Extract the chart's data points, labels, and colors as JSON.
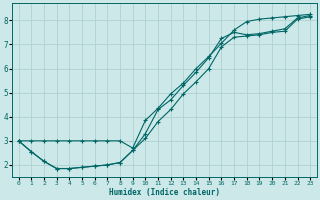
{
  "xlabel": "Humidex (Indice chaleur)",
  "bg_color": "#cce8e8",
  "grid_color": "#b0d0d0",
  "line_color": "#006666",
  "xlim": [
    -0.5,
    23.5
  ],
  "ylim": [
    1.5,
    8.7
  ],
  "xticks": [
    0,
    1,
    2,
    3,
    4,
    5,
    6,
    7,
    8,
    9,
    10,
    11,
    12,
    13,
    14,
    15,
    16,
    17,
    18,
    19,
    20,
    21,
    22,
    23
  ],
  "yticks": [
    2,
    3,
    4,
    5,
    6,
    7,
    8
  ],
  "curve1_x": [
    0,
    1,
    2,
    3,
    4,
    5,
    6,
    7,
    8,
    9,
    10,
    11,
    12,
    13,
    14,
    15,
    16,
    17,
    18,
    19,
    20,
    21,
    22,
    23
  ],
  "curve1_y": [
    3.0,
    2.55,
    2.15,
    1.85,
    1.85,
    1.9,
    1.95,
    2.0,
    2.1,
    2.6,
    3.1,
    3.8,
    4.3,
    4.95,
    5.45,
    6.0,
    6.9,
    7.3,
    7.35,
    7.4,
    7.5,
    7.55,
    8.05,
    8.15
  ],
  "curve2_x": [
    0,
    1,
    2,
    3,
    4,
    5,
    6,
    7,
    8,
    9,
    10,
    11,
    12,
    13,
    14,
    15,
    16,
    17,
    18,
    19,
    20,
    21,
    22,
    23
  ],
  "curve2_y": [
    3.0,
    2.55,
    2.15,
    1.85,
    1.85,
    1.9,
    1.95,
    2.0,
    2.1,
    2.6,
    3.3,
    4.3,
    4.7,
    5.3,
    5.85,
    6.45,
    7.25,
    7.5,
    7.4,
    7.45,
    7.55,
    7.65,
    8.1,
    8.2
  ],
  "curve3_x": [
    0,
    1,
    2,
    3,
    4,
    5,
    6,
    7,
    8,
    9,
    10,
    11,
    12,
    13,
    14,
    15,
    16,
    17,
    18,
    19,
    20,
    21,
    22,
    23
  ],
  "curve3_y": [
    3.0,
    3.0,
    3.0,
    3.0,
    3.0,
    3.0,
    3.0,
    3.0,
    3.0,
    2.7,
    3.85,
    4.35,
    4.95,
    5.4,
    6.0,
    6.5,
    7.05,
    7.6,
    7.95,
    8.05,
    8.1,
    8.15,
    8.2,
    8.25
  ]
}
